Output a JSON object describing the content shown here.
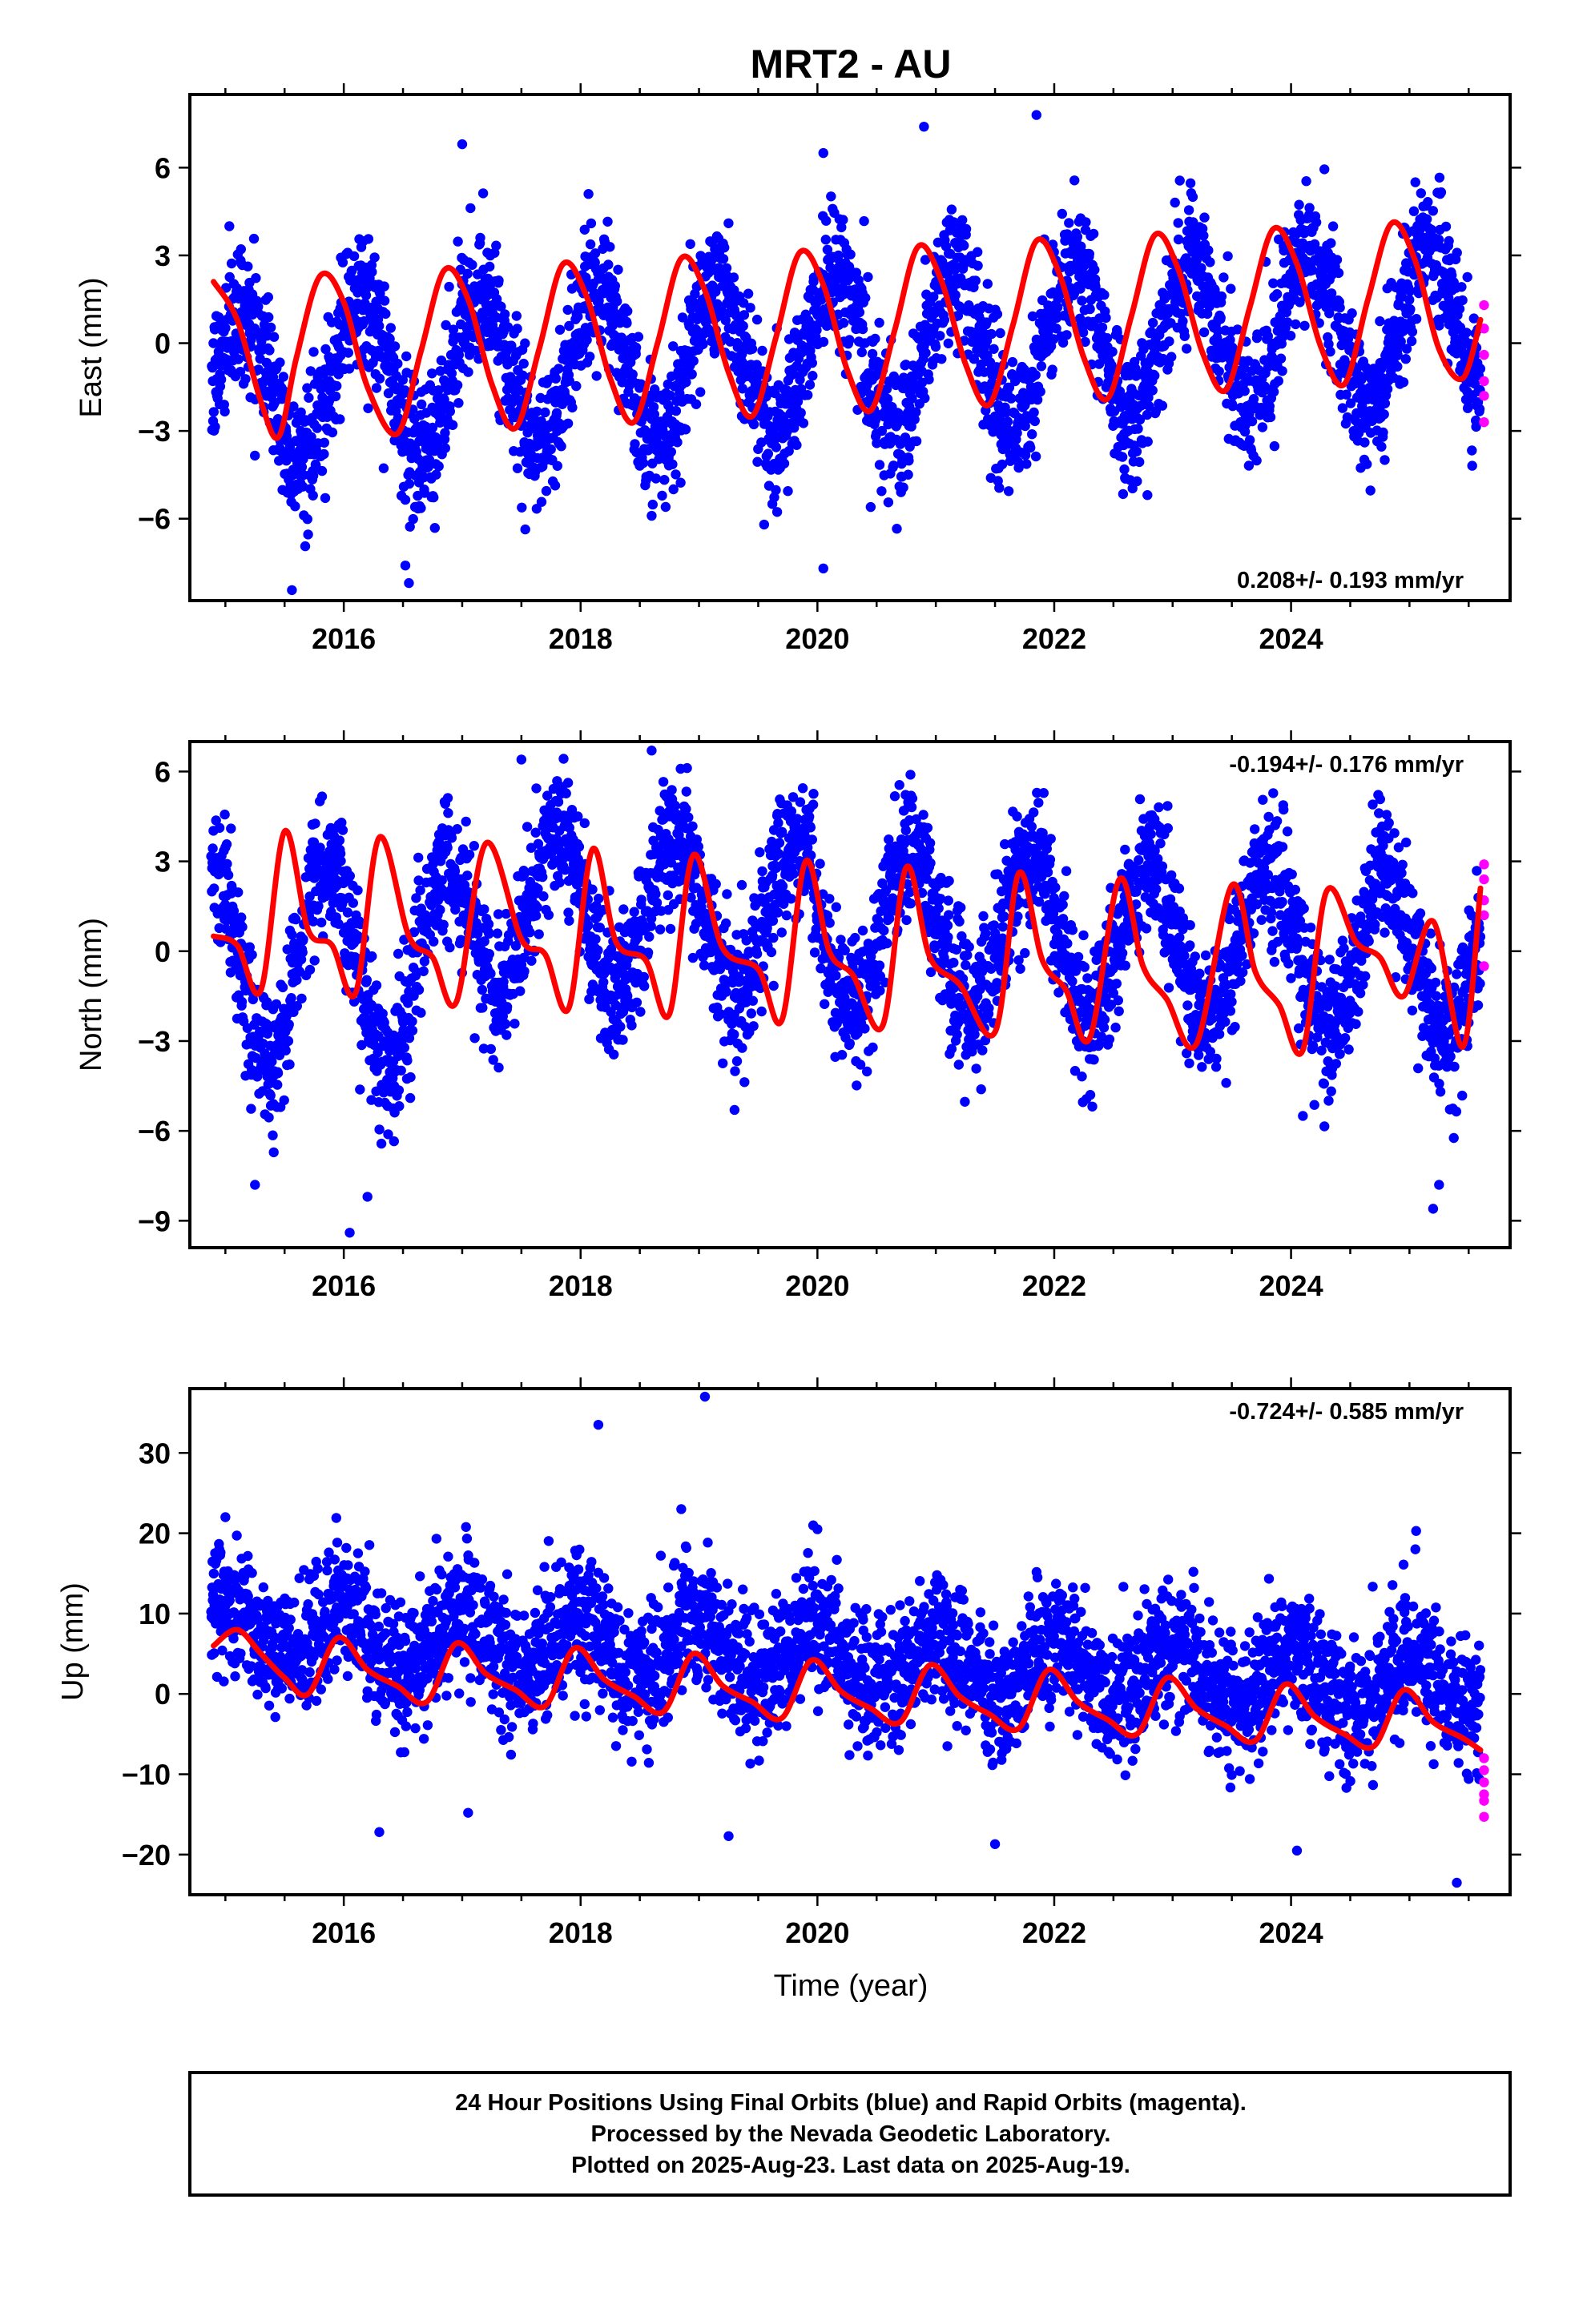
{
  "title": "MRT2 - AU",
  "colors": {
    "final": "#0000ff",
    "rapid": "#ff00ff",
    "fit": "#ff0000",
    "frame": "#000000"
  },
  "footer": [
    "24 Hour Positions Using Final Orbits (blue) and Rapid Orbits (magenta).",
    "Processed by the Nevada Geodetic Laboratory.",
    "Plotted on 2025-Aug-23. Last data on 2025-Aug-19."
  ],
  "chart_data": [
    {
      "type": "scatter",
      "panel": "east",
      "ylabel": "East (mm)",
      "rate": "0.208+/- 0.193 mm/yr",
      "rate_position": "bottom-right",
      "xlim": [
        2014.7,
        2025.85
      ],
      "ylim": [
        -8.8,
        8.5
      ],
      "xticks": [
        2016,
        2018,
        2020,
        2022,
        2024
      ],
      "yticks": [
        -6,
        -3,
        0,
        3,
        6
      ],
      "seasonal": {
        "offset": -0.4,
        "trend": 0.208,
        "amplitude": 2.7,
        "phase_year": 2014.9,
        "scatter": 1.15,
        "ann_amp": 2.7
      },
      "fit": {
        "name": "model",
        "x": [
          2014.9,
          2015.1,
          2015.3,
          2015.45,
          2015.6,
          2015.8,
          2016.0,
          2016.2,
          2016.45,
          2016.65,
          2016.85,
          2017.05,
          2017.25,
          2017.45,
          2017.65,
          2017.85,
          2018.05,
          2018.25,
          2018.45,
          2018.65,
          2018.85,
          2019.05,
          2019.25,
          2019.45,
          2019.65,
          2019.85,
          2020.05,
          2020.25,
          2020.45,
          2020.65,
          2020.85,
          2021.05,
          2021.25,
          2021.45,
          2021.65,
          2021.85,
          2022.05,
          2022.25,
          2022.45,
          2022.65,
          2022.85,
          2023.05,
          2023.25,
          2023.45,
          2023.65,
          2023.85,
          2024.05,
          2024.25,
          2024.45,
          2024.65,
          2024.85,
          2025.05,
          2025.25,
          2025.45,
          2025.6
        ],
        "y": [
          2.1,
          0.8,
          -2.0,
          -3.2,
          -0.5,
          2.3,
          1.4,
          -1.5,
          -3.1,
          -0.3,
          2.5,
          1.5,
          -1.4,
          -2.9,
          -0.2,
          2.7,
          1.6,
          -1.2,
          -2.7,
          0.0,
          2.9,
          1.8,
          -1.0,
          -2.5,
          0.2,
          3.1,
          2.0,
          -0.9,
          -2.3,
          0.4,
          3.3,
          2.1,
          -0.7,
          -2.1,
          0.6,
          3.5,
          2.3,
          -0.5,
          -1.9,
          0.9,
          3.7,
          2.5,
          -0.3,
          -1.6,
          1.2,
          3.9,
          2.7,
          -0.1,
          -1.4,
          1.5,
          4.1,
          2.8,
          -0.2,
          -1.2,
          0.8
        ]
      },
      "outliers": [
        [
          2016.55,
          -8.2
        ],
        [
          2016.52,
          -7.6
        ],
        [
          2020.05,
          -7.7
        ],
        [
          2020.45,
          -5.6
        ],
        [
          2018.6,
          -5.9
        ],
        [
          2019.55,
          -6.2
        ],
        [
          2021.85,
          7.8
        ],
        [
          2020.9,
          7.4
        ],
        [
          2017.0,
          6.8
        ],
        [
          2020.05,
          6.5
        ],
        [
          2025.05,
          5.5
        ]
      ],
      "rapid": [
        [
          2025.63,
          1.3
        ],
        [
          2025.63,
          0.5
        ],
        [
          2025.63,
          -0.4
        ],
        [
          2025.63,
          -1.3
        ],
        [
          2025.63,
          -1.8
        ],
        [
          2025.63,
          -2.7
        ]
      ]
    },
    {
      "type": "scatter",
      "panel": "north",
      "ylabel": "North (mm)",
      "rate": "-0.194+/- 0.176 mm/yr",
      "rate_position": "top-right",
      "xlim": [
        2014.7,
        2025.85
      ],
      "ylim": [
        -9.9,
        7.0
      ],
      "xticks": [
        2016,
        2018,
        2020,
        2022,
        2024
      ],
      "yticks": [
        -9,
        -6,
        -3,
        0,
        3,
        6
      ],
      "seasonal": {
        "offset": 0.9,
        "trend": -0.194,
        "amplitude": 2.6,
        "phase_year": 2014.55,
        "scatter": 1.1,
        "early_shift": -3.4,
        "ann_amp": 2.6
      },
      "fit": {
        "name": "model",
        "x": [
          2014.9,
          2015.1,
          2015.3,
          2015.5,
          2015.7,
          2015.9,
          2016.1,
          2016.3,
          2016.55,
          2016.75,
          2016.95,
          2017.2,
          2017.5,
          2017.7,
          2017.9,
          2018.1,
          2018.3,
          2018.55,
          2018.75,
          2018.95,
          2019.2,
          2019.5,
          2019.7,
          2019.9,
          2020.1,
          2020.3,
          2020.55,
          2020.75,
          2020.95,
          2021.2,
          2021.5,
          2021.7,
          2021.9,
          2022.1,
          2022.3,
          2022.55,
          2022.75,
          2022.95,
          2023.2,
          2023.5,
          2023.7,
          2023.9,
          2024.1,
          2024.3,
          2024.55,
          2024.75,
          2024.95,
          2025.2,
          2025.45,
          2025.6
        ],
        "y": [
          0.5,
          0.2,
          -1.3,
          4.0,
          0.7,
          0.2,
          -1.4,
          3.8,
          0.5,
          -0.2,
          -1.7,
          3.6,
          0.4,
          -0.1,
          -1.9,
          3.4,
          0.3,
          -0.3,
          -2.1,
          3.2,
          0.1,
          -0.6,
          -2.3,
          3.0,
          0.0,
          -0.8,
          -2.5,
          2.8,
          -0.2,
          -1.1,
          -2.7,
          2.6,
          -0.3,
          -1.3,
          -2.9,
          2.4,
          -0.5,
          -1.6,
          -3.1,
          2.2,
          -0.7,
          -1.8,
          -3.3,
          2.0,
          0.3,
          -0.2,
          -1.5,
          1.0,
          -3.2,
          2.1
        ]
      },
      "outliers": [
        [
          2016.05,
          -9.4
        ],
        [
          2015.25,
          -7.8
        ],
        [
          2016.2,
          -8.2
        ],
        [
          2025.2,
          -8.6
        ],
        [
          2025.25,
          -7.8
        ],
        [
          2018.6,
          6.7
        ],
        [
          2017.5,
          6.4
        ],
        [
          2019.3,
          -5.3
        ],
        [
          2024.1,
          -5.5
        ]
      ],
      "rapid": [
        [
          2025.63,
          2.9
        ],
        [
          2025.63,
          2.4
        ],
        [
          2025.63,
          1.7
        ],
        [
          2025.63,
          1.2
        ],
        [
          2025.63,
          -0.5
        ]
      ]
    },
    {
      "type": "scatter",
      "panel": "up",
      "ylabel": "Up (mm)",
      "xlabel": "Time (year)",
      "rate": "-0.724+/- 0.585 mm/yr",
      "rate_position": "top-right",
      "xlim": [
        2014.7,
        2025.85
      ],
      "ylim": [
        -25,
        38
      ],
      "xticks": [
        2016,
        2018,
        2020,
        2022,
        2024
      ],
      "yticks": [
        -20,
        -10,
        0,
        10,
        20,
        30
      ],
      "seasonal": {
        "offset": 4.5,
        "trend": -0.724,
        "amplitude": 3.5,
        "phase_year": 2014.75,
        "scatter": 4.2,
        "ann_amp": 3.5
      },
      "fit": {
        "name": "model",
        "x": [
          2014.9,
          2015.1,
          2015.3,
          2015.5,
          2015.7,
          2015.95,
          2016.2,
          2016.45,
          2016.7,
          2016.95,
          2017.2,
          2017.45,
          2017.7,
          2017.95,
          2018.2,
          2018.45,
          2018.7,
          2018.95,
          2019.2,
          2019.45,
          2019.7,
          2019.95,
          2020.2,
          2020.45,
          2020.7,
          2020.95,
          2021.2,
          2021.45,
          2021.7,
          2021.95,
          2022.2,
          2022.45,
          2022.7,
          2022.95,
          2023.2,
          2023.45,
          2023.7,
          2023.95,
          2024.2,
          2024.45,
          2024.7,
          2024.95,
          2025.2,
          2025.45,
          2025.6
        ],
        "y": [
          6.0,
          8.0,
          5.0,
          2.0,
          0.0,
          7.0,
          3.0,
          1.0,
          -1.0,
          6.3,
          2.5,
          0.5,
          -1.5,
          5.7,
          1.8,
          -0.3,
          -2.2,
          5.0,
          1.0,
          -1.0,
          -3.0,
          4.2,
          0.3,
          -1.8,
          -3.5,
          3.6,
          -0.3,
          -2.5,
          -4.3,
          3.0,
          -1.0,
          -3.2,
          -5.0,
          2.0,
          -1.8,
          -4.0,
          -5.8,
          1.2,
          -2.8,
          -5.0,
          -6.5,
          0.5,
          -3.5,
          -5.5,
          -7.0
        ]
      },
      "outliers": [
        [
          2018.15,
          33.5
        ],
        [
          2019.05,
          37.0
        ],
        [
          2018.85,
          23.0
        ],
        [
          2015.0,
          22.0
        ],
        [
          2020.0,
          20.5
        ],
        [
          2025.05,
          18.0
        ],
        [
          2025.4,
          -23.5
        ],
        [
          2016.3,
          -17.2
        ],
        [
          2019.25,
          -17.7
        ],
        [
          2021.5,
          -18.7
        ],
        [
          2017.05,
          -14.8
        ],
        [
          2024.05,
          -19.5
        ]
      ],
      "rapid": [
        [
          2025.63,
          -8.0
        ],
        [
          2025.63,
          -9.5
        ],
        [
          2025.63,
          -11.0
        ],
        [
          2025.63,
          -12.5
        ],
        [
          2025.63,
          -13.3
        ],
        [
          2025.63,
          -15.3
        ]
      ]
    }
  ]
}
